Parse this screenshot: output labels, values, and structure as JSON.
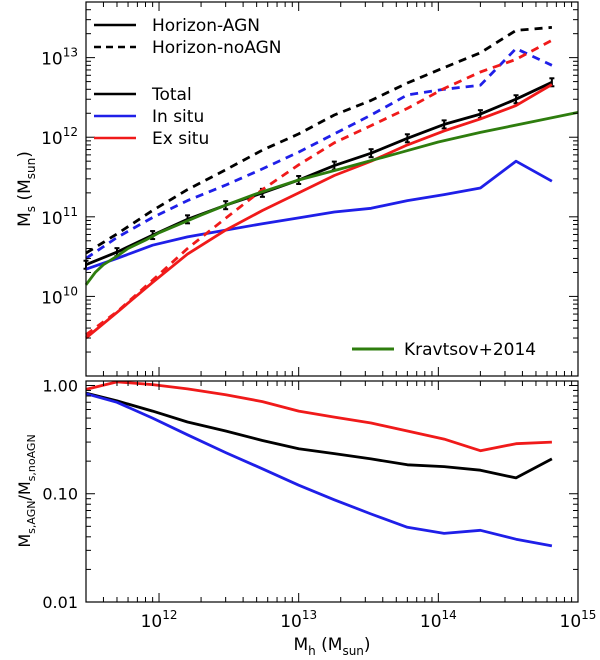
{
  "chart_data": [
    {
      "type": "line",
      "panel": "top",
      "xscale": "log",
      "yscale": "log",
      "xlim": [
        300000000000.0,
        1000000000000000.0
      ],
      "ylim": [
        1000000000.0,
        50000000000000.0
      ],
      "xlabel": "",
      "ylabel": "M_s (M_sun)",
      "ylabel_main": "M",
      "ylabel_sub": "s",
      "ylabel_unit_open": " (M",
      "ylabel_unit_sub": "sun",
      "ylabel_unit_close": ")",
      "y_ticks": [
        {
          "value": 10000000000.0,
          "base": "10",
          "exp": "10"
        },
        {
          "value": 100000000000.0,
          "base": "10",
          "exp": "11"
        },
        {
          "value": 1000000000000.0,
          "base": "10",
          "exp": "12"
        },
        {
          "value": 10000000000000.0,
          "base": "10",
          "exp": "13"
        }
      ],
      "grid": false,
      "legend_groups": [
        {
          "placement": "top-left",
          "entries": [
            {
              "label": "Horizon-AGN",
              "color": "#000000",
              "dash": "solid"
            },
            {
              "label": "Horizon-noAGN",
              "color": "#000000",
              "dash": "dashed"
            }
          ]
        },
        {
          "placement": "upper-left",
          "entries": [
            {
              "label": "Total",
              "color": "#000000",
              "dash": "solid"
            },
            {
              "label": "In situ",
              "color": "#1f1fe8",
              "dash": "solid"
            },
            {
              "label": "Ex situ",
              "color": "#f01a1a",
              "dash": "solid"
            }
          ]
        },
        {
          "placement": "bottom-right",
          "entries": [
            {
              "label": "Kravtsov+2014",
              "color": "#2e7d0e",
              "dash": "solid"
            }
          ]
        }
      ],
      "series": [
        {
          "color": "#000000",
          "dash": "solid",
          "errorbars": true,
          "x": [
            300000000000.0,
            500000000000.0,
            900000000000.0,
            1600000000000.0,
            3000000000000.0,
            5500000000000.0,
            10000000000000.0,
            18000000000000.0,
            33000000000000.0,
            60000000000000.0,
            110000000000000.0,
            200000000000000.0,
            360000000000000.0,
            650000000000000.0
          ],
          "y": [
            25000000000.0,
            36000000000.0,
            59000000000.0,
            93000000000.0,
            140000000000.0,
            200000000000.0,
            290000000000.0,
            440000000000.0,
            630000000000.0,
            970000000000.0,
            1450000000000.0,
            1950000000000.0,
            3000000000000.0,
            4900000000000.0
          ]
        },
        {
          "color": "#1f1fe8",
          "dash": "solid",
          "x": [
            300000000000.0,
            500000000000.0,
            900000000000.0,
            1600000000000.0,
            3000000000000.0,
            5500000000000.0,
            10000000000000.0,
            18000000000000.0,
            33000000000000.0,
            60000000000000.0,
            110000000000000.0,
            200000000000000.0,
            360000000000000.0,
            650000000000000.0
          ],
          "y": [
            22000000000.0,
            30000000000.0,
            44000000000.0,
            56000000000.0,
            68000000000.0,
            82000000000.0,
            97000000000.0,
            115000000000.0,
            128000000000.0,
            160000000000.0,
            190000000000.0,
            230000000000.0,
            500000000000.0,
            280000000000.0
          ]
        },
        {
          "color": "#f01a1a",
          "dash": "solid",
          "x": [
            300000000000.0,
            500000000000.0,
            900000000000.0,
            1600000000000.0,
            3000000000000.0,
            5500000000000.0,
            10000000000000.0,
            18000000000000.0,
            33000000000000.0,
            60000000000000.0,
            110000000000000.0,
            200000000000000.0,
            360000000000000.0,
            650000000000000.0
          ],
          "y": [
            3000000000.0,
            6300000000.0,
            15000000000.0,
            34000000000.0,
            68000000000.0,
            120000000000.0,
            200000000000.0,
            330000000000.0,
            500000000000.0,
            800000000000.0,
            1200000000000.0,
            1700000000000.0,
            2500000000000.0,
            4600000000000.0
          ]
        },
        {
          "color": "#000000",
          "dash": "dashed",
          "x": [
            300000000000.0,
            500000000000.0,
            900000000000.0,
            1600000000000.0,
            3000000000000.0,
            5500000000000.0,
            10000000000000.0,
            18000000000000.0,
            33000000000000.0,
            60000000000000.0,
            110000000000000.0,
            200000000000000.0,
            360000000000000.0,
            650000000000000.0
          ],
          "y": [
            35000000000.0,
            61000000000.0,
            120000000000.0,
            220000000000.0,
            390000000000.0,
            690000000000.0,
            1100000000000.0,
            1900000000000.0,
            2900000000000.0,
            4800000000000.0,
            7500000000000.0,
            11500000000000.0,
            22000000000000.0,
            24000000000000.0
          ]
        },
        {
          "color": "#1f1fe8",
          "dash": "dashed",
          "x": [
            300000000000.0,
            500000000000.0,
            900000000000.0,
            1600000000000.0,
            3000000000000.0,
            5500000000000.0,
            10000000000000.0,
            18000000000000.0,
            33000000000000.0,
            60000000000000.0,
            110000000000000.0,
            200000000000000.0,
            360000000000000.0,
            650000000000000.0
          ],
          "y": [
            30000000000.0,
            55000000000.0,
            98000000000.0,
            160000000000.0,
            250000000000.0,
            400000000000.0,
            650000000000.0,
            1100000000000.0,
            1900000000000.0,
            3400000000000.0,
            4000000000000.0,
            4500000000000.0,
            13000000000000.0,
            8000000000000.0
          ]
        },
        {
          "color": "#f01a1a",
          "dash": "dashed",
          "x": [
            300000000000.0,
            500000000000.0,
            900000000000.0,
            1600000000000.0,
            3000000000000.0,
            5500000000000.0,
            10000000000000.0,
            18000000000000.0,
            33000000000000.0,
            60000000000000.0,
            110000000000000.0,
            200000000000000.0,
            360000000000000.0,
            650000000000000.0
          ],
          "y": [
            3300000000.0,
            6400000000.0,
            16000000000.0,
            40000000000.0,
            96000000000.0,
            220000000000.0,
            450000000000.0,
            850000000000.0,
            1400000000000.0,
            2300000000000.0,
            4100000000000.0,
            6600000000000.0,
            9500000000000.0,
            16500000000000.0
          ]
        },
        {
          "color": "#2e7d0e",
          "dash": "solid",
          "x": [
            300000000000.0,
            350000000000.0,
            400000000000.0,
            500000000000.0,
            600000000000.0,
            800000000000.0,
            1000000000000.0,
            1500000000000.0,
            2000000000000.0,
            3000000000000.0,
            5000000000000.0,
            10000000000000.0,
            20000000000000.0,
            50000000000000.0,
            100000000000000.0,
            200000000000000.0,
            500000000000000.0,
            1000000000000000.0
          ],
          "y": [
            14000000000.0,
            20000000000.0,
            25000000000.0,
            32000000000.0,
            40000000000.0,
            51000000000.0,
            63000000000.0,
            85000000000.0,
            105000000000.0,
            140000000000.0,
            195000000000.0,
            290000000000.0,
            400000000000.0,
            620000000000.0,
            870000000000.0,
            1150000000000.0,
            1600000000000.0,
            2050000000000.0
          ]
        }
      ]
    },
    {
      "type": "line",
      "panel": "bottom",
      "xscale": "log",
      "yscale": "log",
      "xlim": [
        300000000000.0,
        1000000000000000.0
      ],
      "ylim": [
        0.01,
        1.1
      ],
      "xlabel": "M_h (M_sun)",
      "xlabel_main": "M",
      "xlabel_sub": "h",
      "xlabel_unit_open": " (M",
      "xlabel_unit_sub": "sun",
      "xlabel_unit_close": ")",
      "ylabel": "M_s,AGN/M_s,noAGN",
      "ylabel_p1": "M",
      "ylabel_p1_sub": "s,AGN",
      "ylabel_p2": "/M",
      "ylabel_p2_sub": "s,noAGN",
      "y_ticks": [
        {
          "value": 1.0,
          "label": "1.00"
        },
        {
          "value": 0.1,
          "label": "0.10"
        },
        {
          "value": 0.01,
          "label": "0.01"
        }
      ],
      "x_ticks": [
        {
          "value": 1000000000000.0,
          "base": "10",
          "exp": "12"
        },
        {
          "value": 10000000000000.0,
          "base": "10",
          "exp": "13"
        },
        {
          "value": 100000000000000.0,
          "base": "10",
          "exp": "14"
        },
        {
          "value": 1000000000000000.0,
          "base": "10",
          "exp": "15"
        }
      ],
      "grid": false,
      "series": [
        {
          "color": "#f01a1a",
          "dash": "solid",
          "x": [
            300000000000.0,
            500000000000.0,
            900000000000.0,
            1600000000000.0,
            3000000000000.0,
            5500000000000.0,
            10000000000000.0,
            18000000000000.0,
            33000000000000.0,
            60000000000000.0,
            110000000000000.0,
            200000000000000.0,
            360000000000000.0,
            650000000000000.0
          ],
          "y": [
            0.92,
            1.08,
            1.02,
            0.93,
            0.82,
            0.71,
            0.58,
            0.51,
            0.45,
            0.38,
            0.32,
            0.25,
            0.29,
            0.3
          ]
        },
        {
          "color": "#000000",
          "dash": "solid",
          "x": [
            300000000000.0,
            500000000000.0,
            900000000000.0,
            1600000000000.0,
            3000000000000.0,
            5500000000000.0,
            10000000000000.0,
            18000000000000.0,
            33000000000000.0,
            60000000000000.0,
            110000000000000.0,
            200000000000000.0,
            360000000000000.0,
            650000000000000.0
          ],
          "y": [
            0.85,
            0.72,
            0.58,
            0.46,
            0.38,
            0.31,
            0.26,
            0.235,
            0.21,
            0.185,
            0.178,
            0.165,
            0.14,
            0.21
          ]
        },
        {
          "color": "#1f1fe8",
          "dash": "solid",
          "x": [
            300000000000.0,
            500000000000.0,
            900000000000.0,
            1600000000000.0,
            3000000000000.0,
            5500000000000.0,
            10000000000000.0,
            18000000000000.0,
            33000000000000.0,
            60000000000000.0,
            110000000000000.0,
            200000000000000.0,
            360000000000000.0,
            650000000000000.0
          ],
          "y": [
            0.84,
            0.7,
            0.5,
            0.35,
            0.24,
            0.17,
            0.12,
            0.088,
            0.065,
            0.049,
            0.043,
            0.046,
            0.038,
            0.033
          ]
        }
      ]
    }
  ]
}
